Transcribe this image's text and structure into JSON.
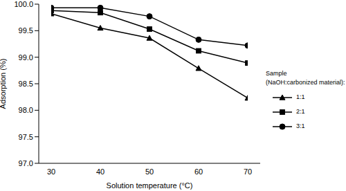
{
  "chart_data": {
    "type": "line",
    "x_label": "Solution temperature (°C)",
    "y_label": "Adsorption (%)",
    "legend_title": "Sample (NaOH:carbonized material):",
    "x": [
      30,
      40,
      50,
      60,
      70
    ],
    "xlim": [
      30,
      70
    ],
    "xticks": [
      30,
      40,
      50,
      60,
      70
    ],
    "ylim": [
      97.0,
      100.0
    ],
    "yticks": [
      {
        "value": 97.0,
        "label": "97.0"
      },
      {
        "value": 97.5,
        "label": "97.5"
      },
      {
        "value": 98.0,
        "label": "98.0"
      },
      {
        "value": 98.5,
        "label": "98.5"
      },
      {
        "value": 99.0,
        "label": "99.0"
      },
      {
        "value": 99.5,
        "label": "99.5"
      },
      {
        "value": 100.0,
        "label": "100.0"
      }
    ],
    "grid": false,
    "legend": "right",
    "series": [
      {
        "name": "1:1",
        "color": "#000000",
        "marker": "triangle",
        "values": [
          99.82,
          99.55,
          99.36,
          98.79,
          98.23
        ]
      },
      {
        "name": "2:1",
        "color": "#000000",
        "marker": "square",
        "values": [
          99.88,
          99.84,
          99.53,
          99.12,
          98.89
        ]
      },
      {
        "name": "3:1",
        "color": "#000000",
        "marker": "circle",
        "values": [
          99.93,
          99.93,
          99.77,
          99.33,
          99.22
        ]
      }
    ]
  }
}
